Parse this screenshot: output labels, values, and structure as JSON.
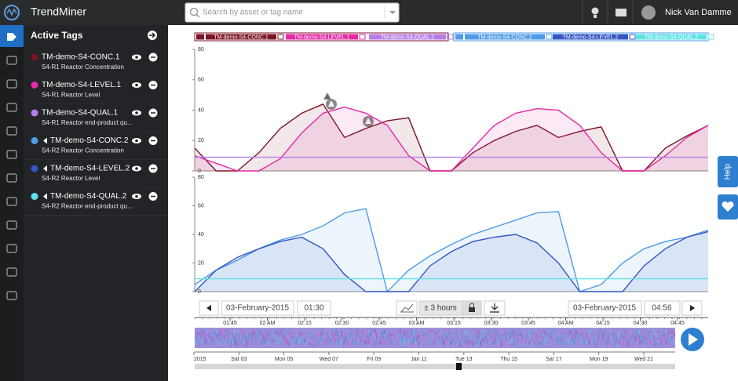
{
  "top_bar": {
    "brand": "TrendMiner",
    "search_placeholder": "Search by asset or tag name",
    "user": "Nick Van Damme"
  },
  "sidebar": {
    "title": "Active Tags",
    "tags": [
      {
        "name": "TM-demo-S4-CONC.1",
        "description": "S4-R1 Reactor Concentration",
        "color": "#7b1526",
        "shifted": false
      },
      {
        "name": "TM-demo-S4-LEVEL.1",
        "description": "S4-R1 Reactor Level",
        "color": "#e52aa5",
        "shifted": false
      },
      {
        "name": "TM-demo-S4-QUAL.1",
        "description": "S4-R1 Reactor end-product qu...",
        "color": "#b77de6",
        "shifted": false
      },
      {
        "name": "TM-demo-S4-CONC.2",
        "description": "S4-R2 Reactor Concentration",
        "color": "#4f9be6",
        "shifted": true
      },
      {
        "name": "TM-demo-S4-LEVEL.2",
        "description": "S4-R2 Reactor Level",
        "color": "#3356c4",
        "shifted": true
      },
      {
        "name": "TM-demo-S4-QUAL.2",
        "description": "S4-R2 Reactor end-product qu...",
        "color": "#5fe2e6",
        "shifted": true
      }
    ]
  },
  "chart_data": [
    {
      "type": "line",
      "ylim": [
        0,
        80
      ],
      "yticks": [
        0,
        20,
        40,
        60,
        80
      ],
      "series": [
        {
          "name": "TM-demo-S4-CONC.1",
          "color": "#7b1526",
          "values": [
            15,
            0,
            0,
            12,
            28,
            38,
            44,
            22,
            28,
            33,
            35,
            0,
            0,
            12,
            20,
            26,
            30,
            22,
            26,
            29,
            0,
            0,
            15,
            23,
            30
          ]
        },
        {
          "name": "TM-demo-S4-LEVEL.1",
          "color": "#e52aa5",
          "values": [
            10,
            5,
            0,
            0,
            8,
            25,
            38,
            42,
            38,
            30,
            10,
            0,
            0,
            15,
            30,
            38,
            41,
            40,
            30,
            12,
            0,
            0,
            10,
            22,
            30
          ]
        },
        {
          "name": "TM-demo-S4-QUAL.1",
          "color": "#b77de6",
          "values": [
            9,
            9,
            9,
            9,
            9,
            9,
            9,
            9,
            9,
            9,
            9,
            9,
            9,
            9,
            9,
            9,
            9,
            9,
            9,
            9,
            9,
            9,
            9,
            9,
            9
          ]
        }
      ]
    },
    {
      "type": "line",
      "ylim": [
        0,
        80
      ],
      "yticks": [
        0,
        20,
        40,
        60,
        80
      ],
      "series": [
        {
          "name": "TM-demo-S4-CONC.2",
          "color": "#4f9be6",
          "values": [
            5,
            15,
            22,
            30,
            36,
            40,
            46,
            55,
            58,
            0,
            15,
            25,
            33,
            40,
            45,
            50,
            55,
            56,
            0,
            5,
            20,
            30,
            35,
            38,
            43
          ]
        },
        {
          "name": "TM-demo-S4-LEVEL.2",
          "color": "#3356c4",
          "values": [
            0,
            15,
            24,
            30,
            35,
            38,
            30,
            12,
            0,
            0,
            0,
            18,
            28,
            35,
            38,
            40,
            34,
            20,
            0,
            0,
            0,
            18,
            30,
            38,
            42
          ]
        },
        {
          "name": "TM-demo-S4-QUAL.2",
          "color": "#5fe2e6",
          "values": [
            9,
            9,
            9,
            9,
            9,
            9,
            9,
            9,
            9,
            9,
            9,
            9,
            9,
            9,
            9,
            9,
            9,
            9,
            9,
            9,
            9,
            9,
            9,
            9,
            9
          ]
        }
      ]
    }
  ],
  "time_axis": {
    "ticks": [
      "01:45",
      "02 AM",
      "02:15",
      "02:30",
      "02:45",
      "03 AM",
      "03:15",
      "03:30",
      "03:45",
      "04 AM",
      "04:15",
      "04:30",
      "04:45"
    ]
  },
  "controls": {
    "start_date": "03-February-2015",
    "start_time": "01:30",
    "range": "± 3 hours",
    "end_date": "03-February-2015",
    "end_time": "04:56"
  },
  "overview": {
    "ticks": [
      "2015",
      "Sat 03",
      "Mon 05",
      "Wed 07",
      "Fri 09",
      "Jan 11",
      "Tue 13",
      "Thu 15",
      "Sat 17",
      "Mon 19",
      "Wed 21"
    ]
  },
  "help": "Help"
}
